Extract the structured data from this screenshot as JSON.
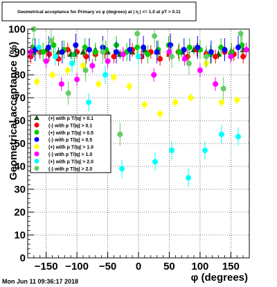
{
  "title": "Geometrical acceptance for Primary vs φ (degrees) at | η | <= 1.0 at pT > 0.11",
  "timestamp": "Mon Jun 11 09:36:17 2018",
  "chart_data": {
    "type": "scatter",
    "title": "Geometrical acceptance for Primary vs φ (degrees) at | η | <= 1.0 at pT > 0.11",
    "xlabel": "φ (degrees)",
    "ylabel": "Geometrical acceptance (%)",
    "xlim": [
      -180,
      180
    ],
    "ylim": [
      0,
      100
    ],
    "xticks": [
      -150,
      -100,
      -50,
      0,
      50,
      100,
      150
    ],
    "yticks": [
      0,
      10,
      20,
      30,
      40,
      50,
      60,
      70,
      80,
      90,
      100
    ],
    "grid": true,
    "legend_position": "left-middle",
    "series": [
      {
        "name": "(+) with p T/|q| > 0.1",
        "color": "#006400",
        "marker": "triangle",
        "x": [
          -170,
          -150,
          -130,
          -110,
          -90,
          -70,
          -50,
          -30,
          -10,
          10,
          30,
          50,
          70,
          90,
          110,
          130,
          150,
          170
        ],
        "y": [
          90,
          91,
          90,
          89,
          90,
          91,
          90,
          89,
          90,
          91,
          90,
          89,
          90,
          91,
          90,
          89,
          90,
          91
        ]
      },
      {
        "name": "(-) with p T/|q| > 0.1",
        "color": "#ff0000",
        "marker": "circle",
        "x": [
          -175,
          -160,
          -145,
          -130,
          -115,
          -100,
          -85,
          -70,
          -55,
          -40,
          -25,
          -10,
          5,
          20,
          35,
          50,
          65,
          80,
          95,
          110,
          125,
          140,
          155,
          170
        ],
        "y": [
          88,
          90,
          89,
          87,
          91,
          90,
          88,
          89,
          90,
          88,
          89,
          91,
          88,
          90,
          87,
          89,
          90,
          88,
          91,
          89,
          88,
          90,
          89,
          88
        ]
      },
      {
        "name": "(+) with p T/|q| > 0.5",
        "color": "#00cc00",
        "marker": "circle",
        "x": [
          -172,
          -155,
          -138,
          -121,
          -104,
          -87,
          -70,
          -53,
          -36,
          -19,
          -2,
          15,
          32,
          49,
          66,
          83,
          100,
          117,
          134,
          151,
          168
        ],
        "y": [
          92,
          90,
          93,
          91,
          89,
          92,
          90,
          91,
          93,
          90,
          92,
          89,
          91,
          93,
          90,
          92,
          91,
          89,
          92,
          90,
          93
        ]
      },
      {
        "name": "(-) with p T/|q| > 0.5",
        "color": "#0000ff",
        "marker": "circle",
        "x": [
          -168,
          -146,
          -124,
          -102,
          -80,
          -58,
          -36,
          -14,
          8,
          30,
          52,
          74,
          96,
          118,
          140,
          162
        ],
        "y": [
          91,
          92,
          90,
          93,
          91,
          92,
          90,
          91,
          92,
          90,
          93,
          91,
          92,
          90,
          91,
          92
        ]
      },
      {
        "name": "(+) with p T/|q| > 1.0",
        "color": "#ffff00",
        "marker": "circle",
        "x": [
          -165,
          -140,
          -115,
          -90,
          -65,
          -40,
          -15,
          10,
          35,
          60,
          85,
          110,
          135,
          160
        ],
        "y": [
          77,
          80,
          82,
          84,
          76,
          79,
          75,
          67,
          63,
          68,
          70,
          85,
          68,
          69
        ]
      },
      {
        "name": "(-) with p T/|q| > 1.0",
        "color": "#ff00ff",
        "marker": "circle",
        "x": [
          -175,
          -150,
          -125,
          -100,
          -75,
          -50,
          -25,
          0,
          25,
          50,
          75,
          100,
          125,
          150,
          175
        ],
        "y": [
          90,
          86,
          76,
          78,
          84,
          86,
          89,
          88,
          80,
          90,
          87,
          82,
          76,
          88,
          91
        ]
      },
      {
        "name": "(+) with p T/|q| > 2.0",
        "color": "#00ffff",
        "marker": "circle",
        "x": [
          -162,
          -135,
          -108,
          -81,
          -54,
          -27,
          0,
          27,
          54,
          81,
          108,
          135,
          162
        ],
        "y": [
          92,
          88,
          85,
          68,
          80,
          39,
          88,
          42,
          47,
          35,
          47,
          54,
          53
        ]
      },
      {
        "name": "(-) with p T/|q| > 2.0",
        "color": "#66cc66",
        "marker": "circle",
        "x": [
          -170,
          -142,
          -114,
          -86,
          -58,
          -30,
          -2,
          26,
          54,
          82,
          110,
          138,
          166
        ],
        "y": [
          100,
          95,
          72,
          82,
          90,
          54,
          98,
          97,
          88,
          85,
          88,
          74,
          98
        ]
      }
    ]
  }
}
